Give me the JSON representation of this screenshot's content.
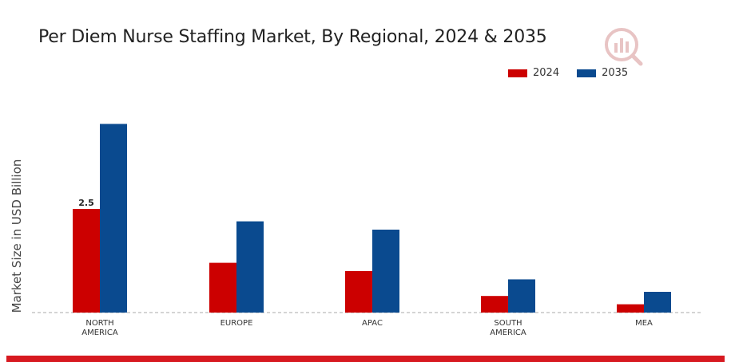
{
  "chart_data": {
    "type": "bar",
    "title": "Per Diem Nurse Staffing Market, By Regional, 2024 & 2035",
    "xlabel": "",
    "ylabel": "Market Size in USD Billion",
    "categories": [
      [
        "NORTH",
        "AMERICA"
      ],
      [
        "EUROPE"
      ],
      [
        "APAC"
      ],
      [
        "SOUTH",
        "AMERICA"
      ],
      [
        "MEA"
      ]
    ],
    "series": [
      {
        "name": "2024",
        "color": "#cc0000",
        "values": [
          2.5,
          1.2,
          1.0,
          0.4,
          0.2
        ]
      },
      {
        "name": "2035",
        "color": "#0a4a8f",
        "values": [
          4.55,
          2.2,
          2.0,
          0.8,
          0.5
        ]
      }
    ],
    "data_labels": [
      {
        "series": 0,
        "index": 0,
        "text": "2.5"
      }
    ],
    "ylim": [
      0,
      6
    ],
    "grid": false,
    "legend_position": "top-right"
  }
}
